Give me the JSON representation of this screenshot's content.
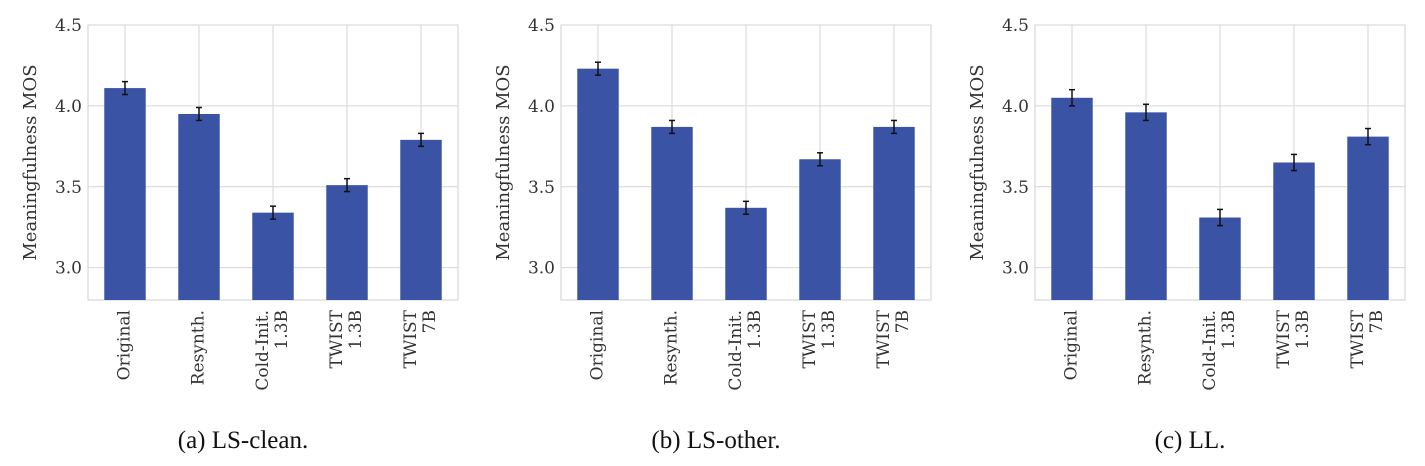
{
  "chart_data": [
    {
      "type": "bar",
      "caption": "(a) LS-clean.",
      "ylabel": "Meaningfulness MOS",
      "categories": [
        [
          "Original"
        ],
        [
          "Resynth."
        ],
        [
          "Cold-Init.",
          "1.3B"
        ],
        [
          "TWIST",
          "1.3B"
        ],
        [
          "TWIST",
          "7B"
        ]
      ],
      "values": [
        4.11,
        3.95,
        3.34,
        3.51,
        3.79
      ],
      "errors": [
        0.04,
        0.04,
        0.04,
        0.04,
        0.04
      ],
      "ylim": [
        2.8,
        4.5
      ],
      "yticks": [
        "3.0",
        "3.5",
        "4.0",
        "4.5"
      ],
      "grid": true,
      "bar_color": "#3a53a4"
    },
    {
      "type": "bar",
      "caption": "(b) LS-other.",
      "ylabel": "Meaningfulness MOS",
      "categories": [
        [
          "Original"
        ],
        [
          "Resynth."
        ],
        [
          "Cold-Init.",
          "1.3B"
        ],
        [
          "TWIST",
          "1.3B"
        ],
        [
          "TWIST",
          "7B"
        ]
      ],
      "values": [
        4.23,
        3.87,
        3.37,
        3.67,
        3.87
      ],
      "errors": [
        0.04,
        0.04,
        0.04,
        0.04,
        0.04
      ],
      "ylim": [
        2.8,
        4.5
      ],
      "yticks": [
        "3.0",
        "3.5",
        "4.0",
        "4.5"
      ],
      "grid": true,
      "bar_color": "#3a53a4"
    },
    {
      "type": "bar",
      "caption": "(c) LL.",
      "ylabel": "Meaningfulness MOS",
      "categories": [
        [
          "Original"
        ],
        [
          "Resynth."
        ],
        [
          "Cold-Init.",
          "1.3B"
        ],
        [
          "TWIST",
          "1.3B"
        ],
        [
          "TWIST",
          "7B"
        ]
      ],
      "values": [
        4.05,
        3.96,
        3.31,
        3.65,
        3.81
      ],
      "errors": [
        0.05,
        0.05,
        0.05,
        0.05,
        0.05
      ],
      "ylim": [
        2.8,
        4.5
      ],
      "yticks": [
        "3.0",
        "3.5",
        "4.0",
        "4.5"
      ],
      "grid": true,
      "bar_color": "#3a53a4"
    }
  ]
}
